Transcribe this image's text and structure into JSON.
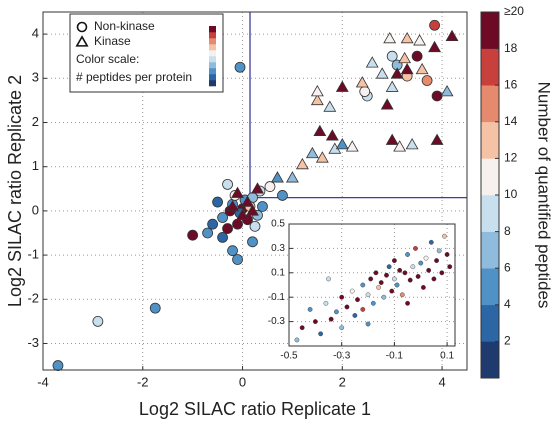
{
  "chart_data": [
    {
      "type": "scatter",
      "xlabel": "Log2 SILAC ratio Replicate 1",
      "ylabel": "Log2 SILAC ratio Replicate 2",
      "xlim": [
        -4,
        4.5
      ],
      "ylim": [
        -3.6,
        4.5
      ],
      "xticks": [
        -4,
        -2,
        0,
        2,
        4
      ],
      "yticks": [
        -3,
        -2,
        -1,
        0,
        1,
        2,
        3,
        4
      ],
      "grid": true,
      "thresholds": {
        "x": 0.15,
        "y": 0.3,
        "color": "#3b3f9a"
      },
      "legend": {
        "position": "upper left",
        "title": "Color scale:",
        "subtitle": "# peptides per protein"
      },
      "colorbar": {
        "label": "Number of quantified peptides",
        "lim": [
          0,
          20
        ],
        "ticks": [
          2,
          4,
          6,
          8,
          10,
          12,
          14,
          16,
          18,
          {
            "value": 20,
            "label": "≥20"
          }
        ],
        "colors": [
          "#1f3a6e",
          "#2c66a5",
          "#5092c6",
          "#8fbcdc",
          "#c8dfee",
          "#f6f1ee",
          "#f6c2a6",
          "#e58a6c",
          "#c8403c",
          "#6d0a26"
        ]
      },
      "series": [
        {
          "name": "Non-kinase",
          "marker": "circle",
          "x": [
            -3.7,
            -2.9,
            -1.75,
            -0.05,
            -1.0,
            3.85,
            3.3,
            3.0,
            3.1,
            2.5,
            2.45,
            3.7,
            3.5,
            3.9,
            0.8,
            0.55,
            0.35,
            -0.2,
            -0.1,
            -0.4,
            0.2,
            -0.3,
            -0.5,
            -0.2,
            0,
            0.1,
            -0.1,
            0.05,
            -0.4,
            0.3,
            -0.6,
            -0.15,
            0.2,
            -0.3,
            -0.05,
            0.15,
            -0.25,
            0.4,
            -0.7,
            0.25
          ],
          "y": [
            -3.5,
            -2.5,
            -2.2,
            3.25,
            -0.55,
            4.2,
            3.05,
            3.5,
            3.3,
            2.6,
            2.7,
            2.95,
            3.5,
            2.6,
            0.35,
            0.55,
            0.45,
            -0.9,
            -1.1,
            -0.6,
            -0.7,
            0.6,
            0.2,
            0.15,
            0.05,
            -0.2,
            -0.3,
            0.25,
            -0.15,
            -0.1,
            -0.3,
            0.35,
            0.3,
            -0.4,
            -0.05,
            0.1,
            0,
            0.1,
            -0.5,
            -0.35
          ],
          "peptides": [
            5,
            9,
            5,
            4,
            19,
            17,
            13,
            9,
            7,
            8,
            10,
            15,
            19,
            20,
            4,
            11,
            8,
            5,
            5,
            3,
            4,
            8,
            3,
            5,
            20,
            20,
            22,
            4,
            5,
            6,
            3,
            10,
            7,
            19,
            3,
            12,
            20,
            5,
            4,
            8
          ]
        },
        {
          "name": "Kinase",
          "marker": "triangle",
          "x": [
            1.4,
            1.6,
            1.85,
            1.2,
            1.0,
            0.7,
            2.0,
            2.2,
            1.55,
            1.8,
            1.75,
            1.5,
            1.5,
            2.0,
            2.4,
            2.9,
            3.0,
            3.4,
            3.15,
            3.9,
            3.0,
            3.3,
            3.25,
            2.8,
            2.6,
            2.95,
            3.3,
            3.55,
            3.85,
            4.2,
            3.6,
            4.1,
            3.1,
            0.3,
            0.1,
            -0.1,
            0.0,
            -0.2,
            0.2
          ],
          "y": [
            1.3,
            1.2,
            1.4,
            1.05,
            0.75,
            0.75,
            1.5,
            1.45,
            1.8,
            1.7,
            2.35,
            2.5,
            2.7,
            2.8,
            2.9,
            2.4,
            1.6,
            1.5,
            1.45,
            1.6,
            2.8,
            3.2,
            3.45,
            3.1,
            3.35,
            3.9,
            3.9,
            3.85,
            3.7,
            3.95,
            3.2,
            2.7,
            3.1,
            0.5,
            0.2,
            0.4,
            -0.1,
            0.1,
            0.0
          ],
          "peptides": [
            7,
            13,
            9,
            13,
            7,
            5,
            5,
            11,
            20,
            20,
            9,
            13,
            11,
            20,
            13,
            19,
            20,
            9,
            11,
            20,
            9,
            19,
            13,
            9,
            9,
            11,
            12,
            11,
            20,
            20,
            12,
            7,
            20,
            20,
            20,
            18,
            19,
            20,
            18
          ]
        }
      ]
    },
    {
      "type": "scatter",
      "xlim": [
        -0.5,
        0.13
      ],
      "ylim": [
        -0.5,
        0.5
      ],
      "xticks": [
        -0.5,
        -0.3,
        -0.1,
        0.1
      ],
      "yticks": [
        -0.3,
        -0.1,
        0.1,
        0.3,
        0.5
      ],
      "grid": true,
      "x": [
        -0.45,
        -0.42,
        -0.4,
        -0.38,
        -0.36,
        -0.34,
        -0.32,
        -0.3,
        -0.3,
        -0.28,
        -0.26,
        -0.25,
        -0.24,
        -0.22,
        -0.22,
        -0.2,
        -0.19,
        -0.18,
        -0.17,
        -0.16,
        -0.15,
        -0.14,
        -0.13,
        -0.12,
        -0.11,
        -0.1,
        -0.1,
        -0.09,
        -0.08,
        -0.07,
        -0.06,
        -0.05,
        -0.04,
        -0.03,
        -0.02,
        -0.01,
        0.0,
        0.01,
        0.02,
        0.03,
        0.04,
        0.05,
        0.06,
        0.07,
        0.08,
        0.09,
        0.1,
        -0.47,
        -0.35,
        -0.2,
        0.11,
        -0.05
      ],
      "y": [
        -0.35,
        -0.2,
        -0.3,
        -0.4,
        -0.15,
        -0.28,
        -0.22,
        -0.1,
        -0.35,
        -0.18,
        -0.05,
        -0.25,
        -0.12,
        0.0,
        -0.2,
        -0.08,
        0.05,
        -0.15,
        0.1,
        -0.02,
        0.02,
        -0.1,
        0.08,
        0.15,
        -0.05,
        0.05,
        0.2,
        0.0,
        0.12,
        -0.08,
        0.1,
        0.25,
        0.04,
        0.15,
        0.3,
        0.07,
        0.18,
        -0.02,
        0.22,
        0.12,
        0.35,
        0.05,
        0.2,
        0.28,
        0.1,
        0.4,
        0.25,
        -0.45,
        0.05,
        -0.32,
        0.15,
        -0.15
      ],
      "peptides": [
        19,
        5,
        20,
        3,
        9,
        18,
        4,
        20,
        7,
        19,
        11,
        3,
        20,
        5,
        17,
        8,
        20,
        4,
        19,
        12,
        20,
        6,
        18,
        3,
        20,
        9,
        19,
        5,
        20,
        14,
        19,
        4,
        20,
        8,
        17,
        20,
        5,
        19,
        10,
        20,
        3,
        18,
        20,
        7,
        19,
        13,
        20,
        6,
        9,
        4,
        19,
        20
      ]
    }
  ]
}
